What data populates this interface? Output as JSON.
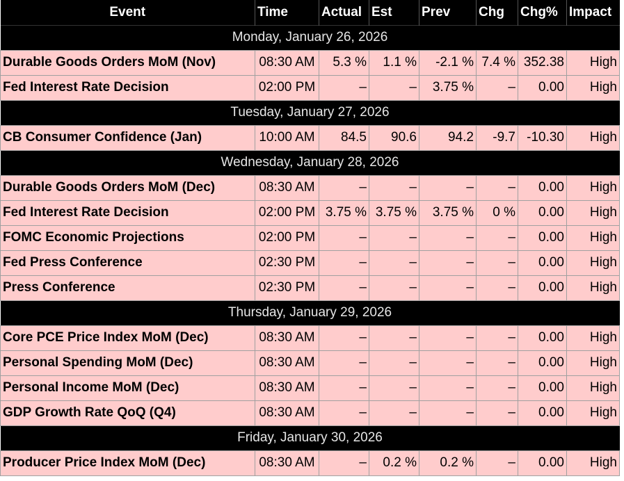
{
  "columns": {
    "event": "Event",
    "time": "Time",
    "actual": "Actual",
    "est": "Est",
    "prev": "Prev",
    "chg": "Chg",
    "chg_pct": "Chg%",
    "impact": "Impact"
  },
  "colors": {
    "header_bg": "#000000",
    "header_text": "#ffffff",
    "row_bg": "#ffcccc",
    "date_text": "#e6e6e6"
  },
  "days": [
    {
      "date": "Monday, January 26, 2026",
      "events": [
        {
          "event": "Durable Goods Orders MoM (Nov)",
          "time": "08:30 AM",
          "actual": "5.3 %",
          "est": "1.1 %",
          "prev": "-2.1 %",
          "chg": "7.4 %",
          "chg_pct": "352.38",
          "impact": "High"
        },
        {
          "event": "Fed Interest Rate Decision",
          "time": "02:00 PM",
          "actual": "–",
          "est": "–",
          "prev": "3.75 %",
          "chg": "–",
          "chg_pct": "0.00",
          "impact": "High"
        }
      ]
    },
    {
      "date": "Tuesday, January 27, 2026",
      "events": [
        {
          "event": "CB Consumer Confidence (Jan)",
          "time": "10:00 AM",
          "actual": "84.5",
          "est": "90.6",
          "prev": "94.2",
          "chg": "-9.7",
          "chg_pct": "-10.30",
          "impact": "High"
        }
      ]
    },
    {
      "date": "Wednesday, January 28, 2026",
      "events": [
        {
          "event": "Durable Goods Orders MoM (Dec)",
          "time": "08:30 AM",
          "actual": "–",
          "est": "–",
          "prev": "–",
          "chg": "–",
          "chg_pct": "0.00",
          "impact": "High"
        },
        {
          "event": "Fed Interest Rate Decision",
          "time": "02:00 PM",
          "actual": "3.75 %",
          "est": "3.75 %",
          "prev": "3.75 %",
          "chg": "0 %",
          "chg_pct": "0.00",
          "impact": "High"
        },
        {
          "event": "FOMC Economic Projections",
          "time": "02:00 PM",
          "actual": "–",
          "est": "–",
          "prev": "–",
          "chg": "–",
          "chg_pct": "0.00",
          "impact": "High"
        },
        {
          "event": "Fed Press Conference",
          "time": "02:30 PM",
          "actual": "–",
          "est": "–",
          "prev": "–",
          "chg": "–",
          "chg_pct": "0.00",
          "impact": "High"
        },
        {
          "event": "Press Conference",
          "time": "02:30 PM",
          "actual": "–",
          "est": "–",
          "prev": "–",
          "chg": "–",
          "chg_pct": "0.00",
          "impact": "High"
        }
      ]
    },
    {
      "date": "Thursday, January 29, 2026",
      "events": [
        {
          "event": "Core PCE Price Index MoM (Dec)",
          "time": "08:30 AM",
          "actual": "–",
          "est": "–",
          "prev": "–",
          "chg": "–",
          "chg_pct": "0.00",
          "impact": "High"
        },
        {
          "event": "Personal Spending MoM (Dec)",
          "time": "08:30 AM",
          "actual": "–",
          "est": "–",
          "prev": "–",
          "chg": "–",
          "chg_pct": "0.00",
          "impact": "High"
        },
        {
          "event": "Personal Income MoM (Dec)",
          "time": "08:30 AM",
          "actual": "–",
          "est": "–",
          "prev": "–",
          "chg": "–",
          "chg_pct": "0.00",
          "impact": "High"
        },
        {
          "event": "GDP Growth Rate QoQ (Q4)",
          "time": "08:30 AM",
          "actual": "–",
          "est": "–",
          "prev": "–",
          "chg": "–",
          "chg_pct": "0.00",
          "impact": "High"
        }
      ]
    },
    {
      "date": "Friday, January 30, 2026",
      "events": [
        {
          "event": "Producer Price Index MoM (Dec)",
          "time": "08:30 AM",
          "actual": "–",
          "est": "0.2 %",
          "prev": "0.2 %",
          "chg": "–",
          "chg_pct": "0.00",
          "impact": "High"
        }
      ]
    }
  ]
}
